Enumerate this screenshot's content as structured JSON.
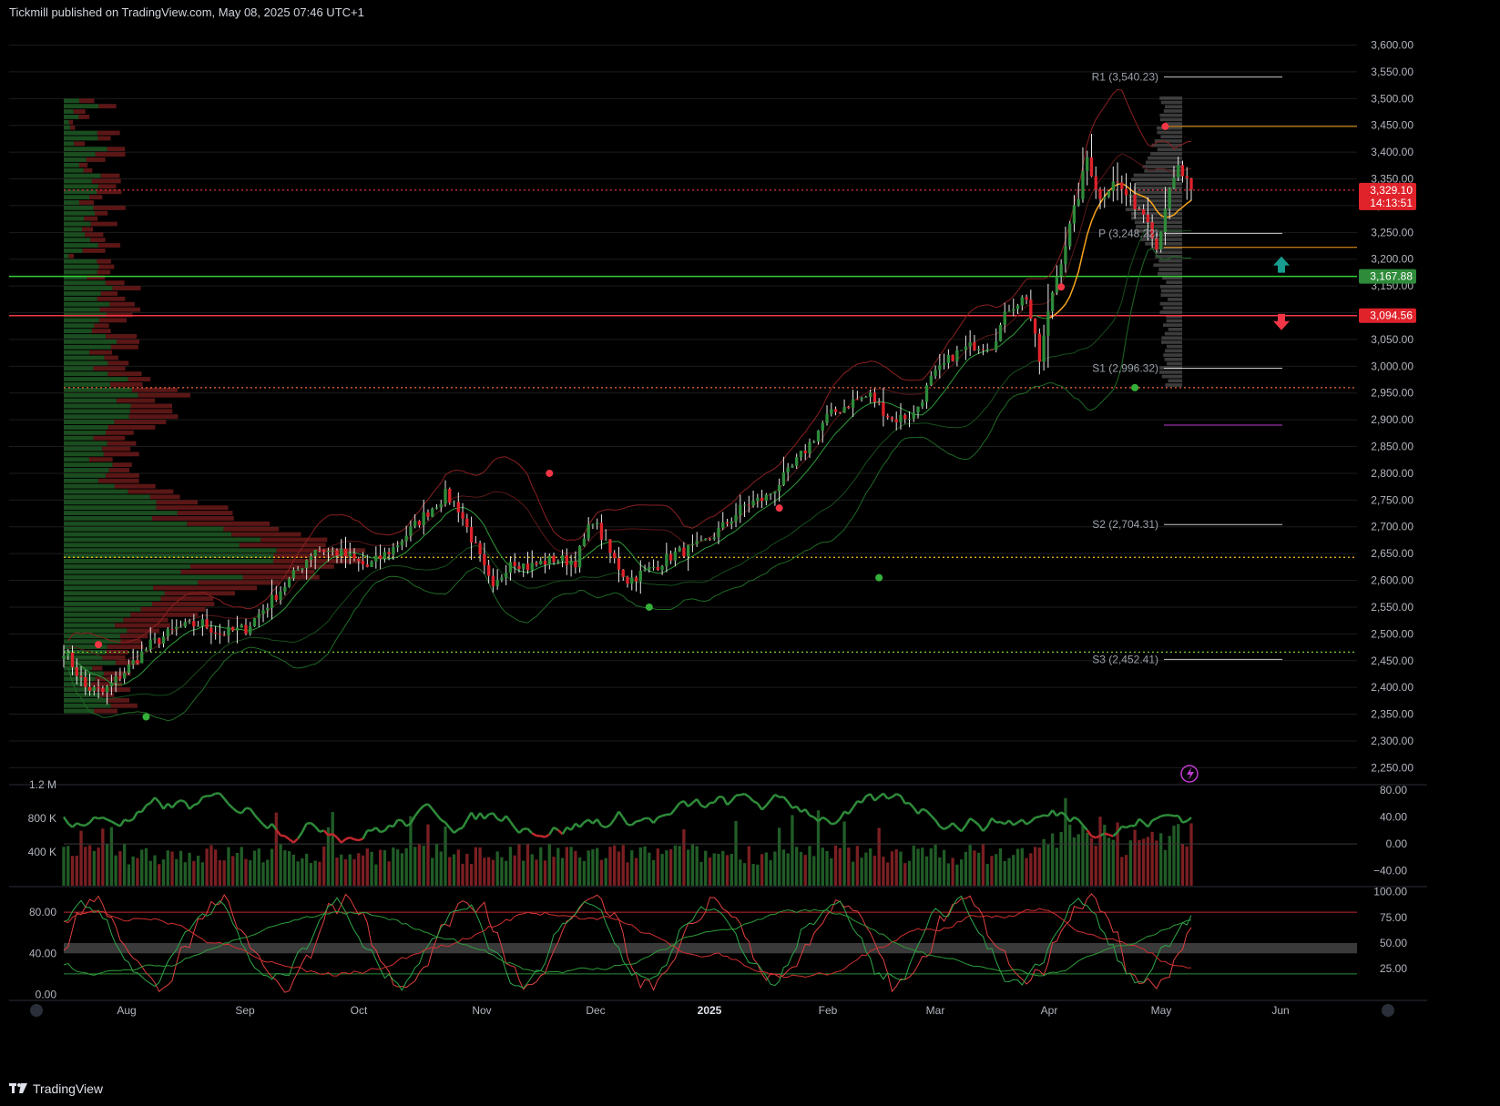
{
  "header": {
    "published": "Tickmill published on TradingView.com, May 08, 2025 07:46 UTC+1"
  },
  "footer": {
    "brand": "TradingView"
  },
  "colors": {
    "up": "#2e8b3a",
    "down": "#e0222a",
    "bg": "#000000",
    "grid": "#1c1c1c",
    "text": "#b2b5be",
    "green_line": "#35d03a",
    "red_line": "#f23645",
    "orange": "#f7a21b"
  },
  "chart_data": [
    {
      "type": "candlestick",
      "title": "",
      "ylim": [
        2220,
        3640
      ],
      "y_ticks": [
        "3,600.00",
        "3,550.00",
        "3,500.00",
        "3,450.00",
        "3,400.00",
        "3,350.00",
        "3,300.00",
        "3,250.00",
        "3,200.00",
        "3,150.00",
        "3,100.00",
        "3,050.00",
        "3,000.00",
        "2,950.00",
        "2,900.00",
        "2,850.00",
        "2,800.00",
        "2,750.00",
        "2,700.00",
        "2,650.00",
        "2,600.00",
        "2,550.00",
        "2,500.00",
        "2,450.00",
        "2,400.00",
        "2,350.00",
        "2,300.00",
        "2,250.00"
      ],
      "y_tick_values": [
        3600,
        3550,
        3500,
        3450,
        3400,
        3350,
        3300,
        3250,
        3200,
        3150,
        3100,
        3050,
        3000,
        2950,
        2900,
        2850,
        2800,
        2750,
        2700,
        2650,
        2600,
        2550,
        2500,
        2450,
        2400,
        2350,
        2300,
        2250
      ],
      "x_ticks": [
        "Aug",
        "Sep",
        "Oct",
        "Nov",
        "Dec",
        "2025",
        "Feb",
        "Mar",
        "Apr",
        "May",
        "Jun"
      ],
      "price_labels": [
        {
          "value": 3329.1,
          "text": "3,329.10",
          "sub": "14:13:51",
          "color": "#e0222a"
        },
        {
          "value": 3167.88,
          "text": "3,167.88",
          "color": "#2e8b3a"
        },
        {
          "value": 3094.56,
          "text": "3,094.56",
          "color": "#e0222a"
        }
      ],
      "pivots": [
        {
          "label": "R1 (3,540.23)",
          "value": 3540.23
        },
        {
          "label": "P (3,248.22)",
          "value": 3248.22
        },
        {
          "label": "S1 (2,996.32)",
          "value": 2996.32
        },
        {
          "label": "S2 (2,704.31)",
          "value": 2704.31
        },
        {
          "label": "S3 (2,452.41)",
          "value": 2452.41
        }
      ],
      "levels": [
        {
          "value": 3167.88,
          "style": "solid",
          "color": "#35d03a"
        },
        {
          "value": 3094.56,
          "style": "solid",
          "color": "#f23645"
        },
        {
          "value": 3329.1,
          "style": "dotted",
          "color": "#f23645"
        },
        {
          "value": 2960,
          "style": "dotted",
          "color": "#f06a3a"
        },
        {
          "value": 2643,
          "style": "dotted",
          "color": "#f7c21b"
        },
        {
          "value": 2466,
          "style": "dotted",
          "color": "#7ccd3a"
        }
      ],
      "anchor_points": [
        [
          0,
          2470
        ],
        [
          5,
          2400
        ],
        [
          9,
          2390
        ],
        [
          14,
          2430
        ],
        [
          20,
          2480
        ],
        [
          26,
          2510
        ],
        [
          32,
          2520
        ],
        [
          36,
          2500
        ],
        [
          42,
          2510
        ],
        [
          47,
          2555
        ],
        [
          52,
          2600
        ],
        [
          58,
          2660
        ],
        [
          64,
          2650
        ],
        [
          70,
          2625
        ],
        [
          76,
          2660
        ],
        [
          83,
          2720
        ],
        [
          88,
          2760
        ],
        [
          91,
          2735
        ],
        [
          95,
          2660
        ],
        [
          99,
          2580
        ],
        [
          103,
          2640
        ],
        [
          107,
          2625
        ],
        [
          113,
          2640
        ],
        [
          118,
          2635
        ],
        [
          122,
          2715
        ],
        [
          126,
          2650
        ],
        [
          130,
          2600
        ],
        [
          135,
          2620
        ],
        [
          141,
          2650
        ],
        [
          147,
          2665
        ],
        [
          152,
          2700
        ],
        [
          157,
          2740
        ],
        [
          162,
          2755
        ],
        [
          167,
          2800
        ],
        [
          172,
          2855
        ],
        [
          176,
          2905
        ],
        [
          182,
          2935
        ],
        [
          186,
          2945
        ],
        [
          191,
          2900
        ],
        [
          196,
          2910
        ],
        [
          200,
          2975
        ],
        [
          205,
          3020
        ],
        [
          210,
          3040
        ],
        [
          214,
          3040
        ],
        [
          218,
          3110
        ],
        [
          222,
          3130
        ],
        [
          225,
          3010
        ],
        [
          228,
          3140
        ],
        [
          231,
          3230
        ],
        [
          234,
          3320
        ],
        [
          236,
          3390
        ],
        [
          239,
          3310
        ],
        [
          242,
          3350
        ],
        [
          246,
          3310
        ],
        [
          250,
          3280
        ],
        [
          252,
          3220
        ],
        [
          254,
          3300
        ],
        [
          257,
          3370
        ],
        [
          260,
          3330
        ]
      ]
    },
    {
      "type": "bar+line",
      "title": "",
      "y_ticks_left": [
        "1.2 M",
        "800 K",
        "400 K"
      ],
      "y_ticks_right": [
        "80.00",
        "40.00",
        "0.00",
        "−40.00"
      ],
      "y_ticks_right_values": [
        80,
        40,
        0,
        -40
      ],
      "ylim_left": [
        0,
        1200000
      ],
      "ylim_right": [
        -62,
        88
      ]
    },
    {
      "type": "line",
      "title": "",
      "y_ticks_left": [
        "80.00",
        "40.00",
        "0.00"
      ],
      "y_ticks_right": [
        "100.00",
        "75.00",
        "50.00",
        "25.00"
      ],
      "ylim": [
        -5,
        105
      ],
      "bands": [
        80,
        50,
        40,
        20
      ]
    }
  ]
}
